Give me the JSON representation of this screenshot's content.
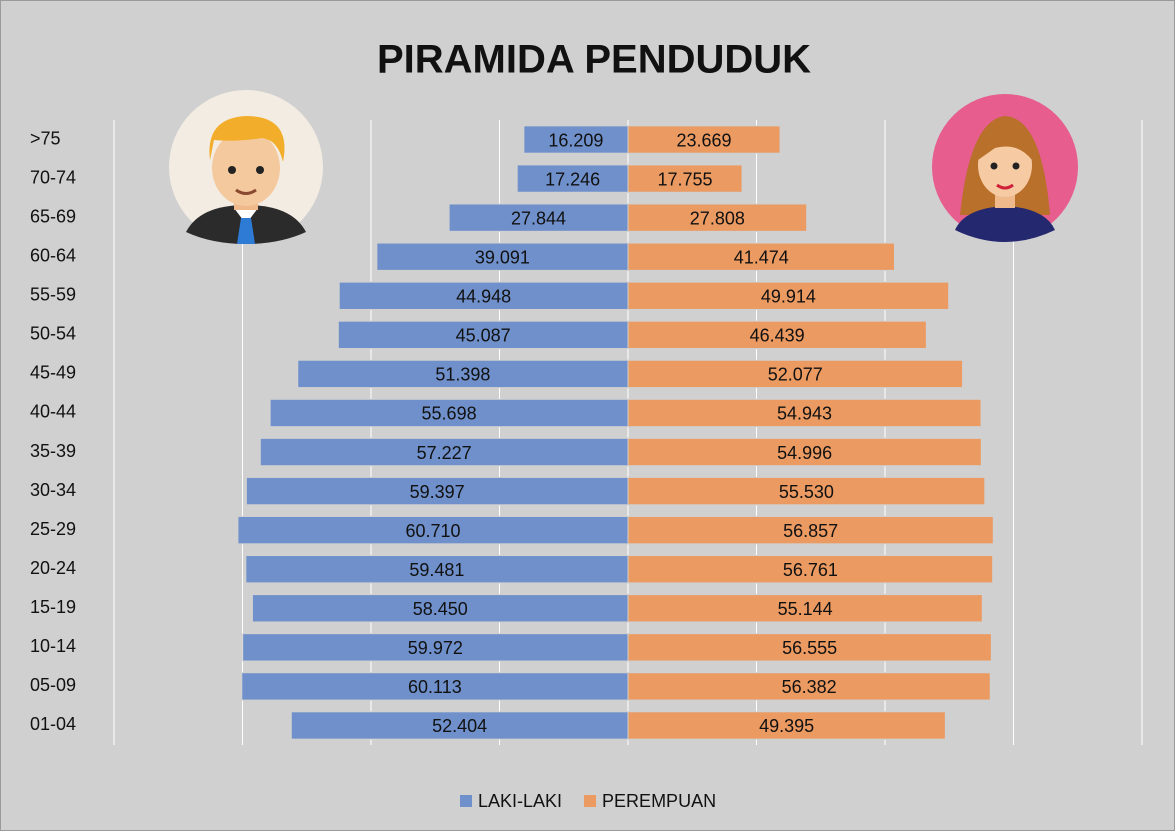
{
  "chart_data": {
    "type": "pyramid",
    "title": "PIRAMIDA PENDUDUK",
    "categories": [
      ">75",
      "70-74",
      "65-69",
      "60-64",
      "55-59",
      "50-54",
      "45-49",
      "40-44",
      "35-39",
      "30-34",
      "25-29",
      "20-24",
      "15-19",
      "10-14",
      "05-09",
      "01-04"
    ],
    "series": [
      {
        "name": "LAKI-LAKI",
        "color": "#6f90ca",
        "side": "left",
        "values": [
          16209,
          17246,
          27844,
          39091,
          44948,
          45087,
          51398,
          55698,
          57227,
          59397,
          60710,
          59481,
          58450,
          59972,
          60113,
          52404
        ],
        "value_labels": [
          "16.209",
          "17.246",
          "27.844",
          "39.091",
          "44.948",
          "45.087",
          "51.398",
          "55.698",
          "57.227",
          "59.397",
          "60.710",
          "59.481",
          "58.450",
          "59.972",
          "60.113",
          "52.404"
        ]
      },
      {
        "name": "PEREMPUAN",
        "color": "#eb9a62",
        "side": "right",
        "values": [
          23669,
          17755,
          27808,
          41474,
          49914,
          46439,
          52077,
          54943,
          54996,
          55530,
          56857,
          56761,
          55144,
          56555,
          56382,
          49395
        ],
        "value_labels": [
          "23.669",
          "17.755",
          "27.808",
          "41.474",
          "49.914",
          "46.439",
          "52.077",
          "54.943",
          "54.996",
          "55.530",
          "56.857",
          "56.761",
          "55.144",
          "56.555",
          "56.382",
          "49.395"
        ]
      }
    ],
    "xlim": [
      -80000,
      80000
    ],
    "xticks": [
      -80000,
      -60000,
      -40000,
      -20000,
      0,
      20000,
      40000,
      60000,
      80000
    ],
    "grid": true
  }
}
